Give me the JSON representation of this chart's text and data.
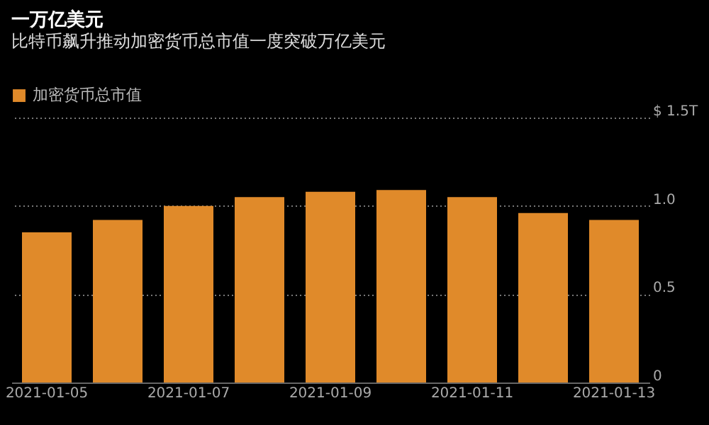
{
  "chart_data": {
    "type": "bar",
    "title": "一万亿美元",
    "subtitle": "比特币飙升推动加密货币总市值一度突破万亿美元",
    "categories": [
      "2021-01-05",
      null,
      "2021-01-07",
      null,
      "2021-01-09",
      null,
      "2021-01-11",
      null,
      "2021-01-13"
    ],
    "series": [
      {
        "name": "加密货币总市值",
        "color": "#e08a2a",
        "values": [
          0.85,
          0.92,
          1.0,
          1.05,
          1.08,
          1.09,
          1.05,
          0.96,
          0.92
        ]
      }
    ],
    "ylim": [
      0,
      1.5
    ],
    "yticks": [
      0,
      0.5,
      {
        "value": 1,
        "label": "1.0"
      },
      {
        "value": 1.5,
        "label": "$ 1.5T"
      }
    ],
    "grid": "y",
    "legend": "top left"
  }
}
